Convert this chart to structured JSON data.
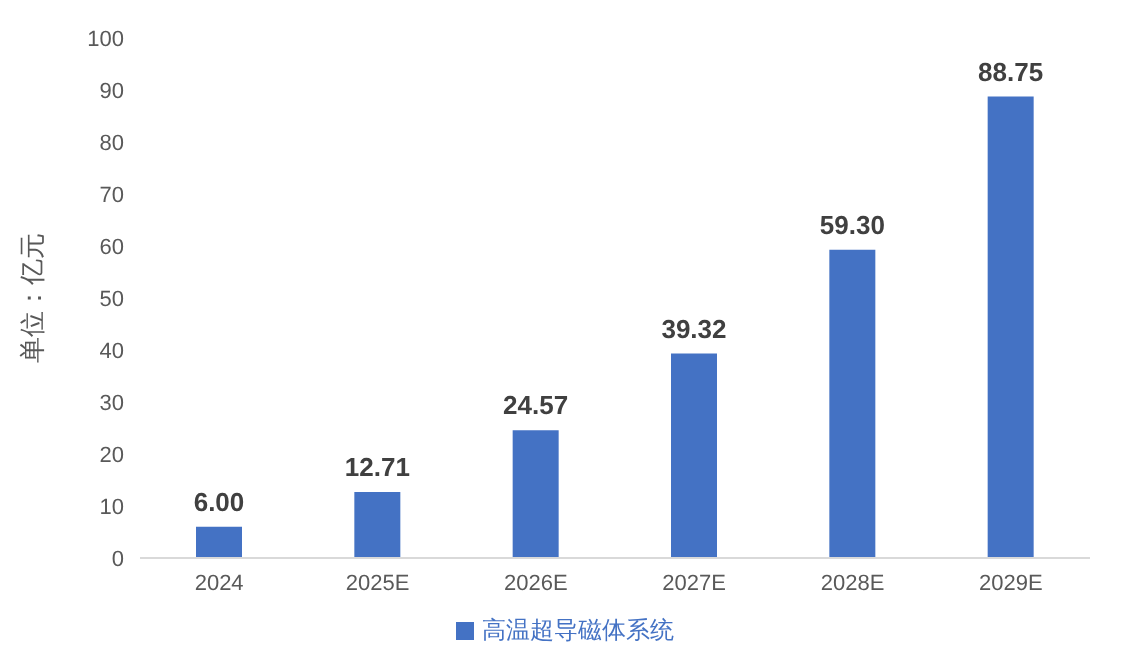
{
  "chart_data": {
    "type": "bar",
    "ylabel": "单位：亿元",
    "categories": [
      "2024",
      "2025E",
      "2026E",
      "2027E",
      "2028E",
      "2029E"
    ],
    "series": [
      {
        "name": "高温超导磁体系统",
        "color": "#4472c4",
        "values": [
          6.0,
          12.71,
          24.57,
          39.32,
          59.3,
          88.75
        ],
        "value_labels": [
          "6.00",
          "12.71",
          "24.57",
          "39.32",
          "59.30",
          "88.75"
        ]
      }
    ],
    "ylim": [
      0,
      100
    ],
    "yticks": [
      0,
      10,
      20,
      30,
      40,
      50,
      60,
      70,
      80,
      90,
      100
    ],
    "grid": false,
    "legend": "bottom"
  }
}
